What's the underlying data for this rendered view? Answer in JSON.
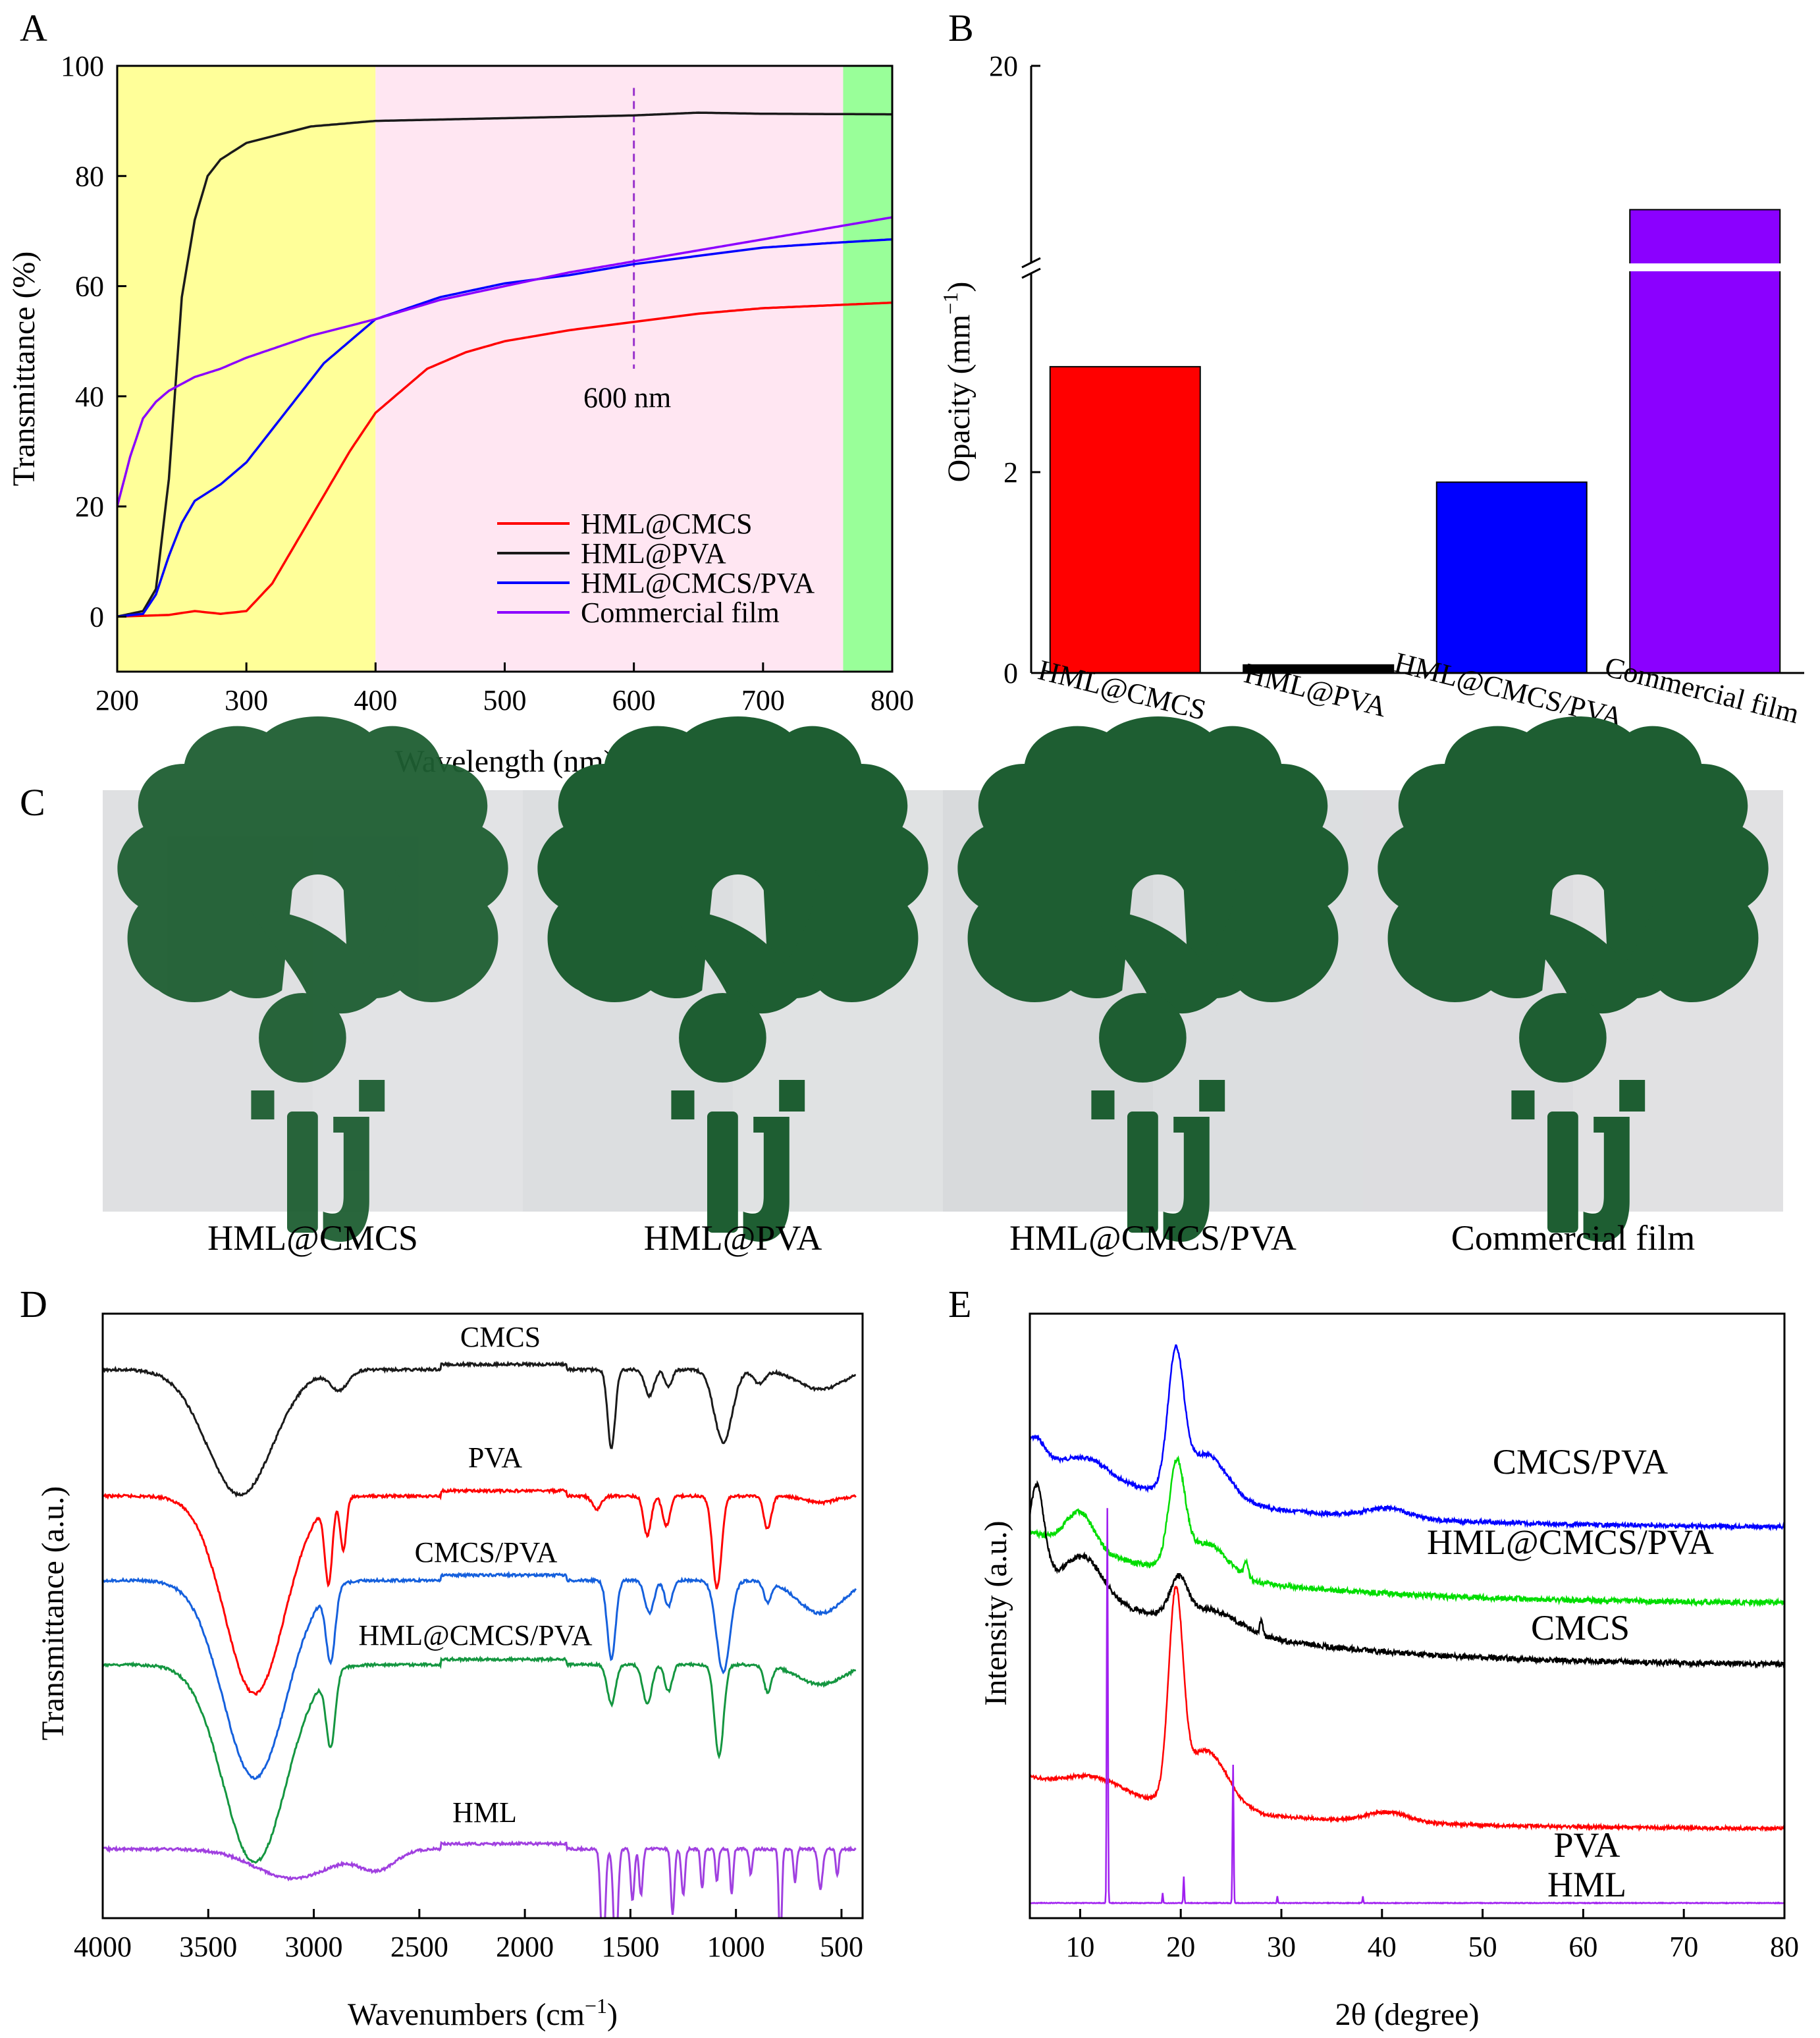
{
  "panels": {
    "A": "A",
    "B": "B",
    "C": "C",
    "D": "D",
    "E": "E"
  },
  "chart_data": [
    {
      "id": "A",
      "type": "line",
      "xlabel": "Wavelength (nm)",
      "ylabel": "Transmittance (%)",
      "xlim": [
        200,
        800
      ],
      "ylim": [
        -10,
        100
      ],
      "xticks": [
        200,
        300,
        400,
        500,
        600,
        700,
        800
      ],
      "yticks": [
        0,
        20,
        40,
        60,
        80,
        100
      ],
      "regions": [
        {
          "from": 200,
          "to": 400,
          "color": "#ffff99"
        },
        {
          "from": 400,
          "to": 762,
          "color": "#ffe6f2"
        },
        {
          "from": 762,
          "to": 800,
          "color": "#99ff99"
        }
      ],
      "annotation": {
        "x": 600,
        "text": "600 nm",
        "color": "#9933cc"
      },
      "legend_position": "bottom-right",
      "series": [
        {
          "name": "HML@CMCS",
          "color": "#ff0000",
          "x": [
            200,
            240,
            260,
            280,
            300,
            320,
            340,
            360,
            380,
            400,
            420,
            440,
            470,
            500,
            550,
            600,
            650,
            700,
            750,
            800
          ],
          "y": [
            0,
            0.3,
            1,
            0.5,
            1,
            6,
            14,
            22,
            30,
            37,
            41,
            45,
            48,
            50,
            52,
            53.5,
            55,
            56,
            56.5,
            57
          ]
        },
        {
          "name": "HML@PVA",
          "color": "#1a1a1a",
          "x": [
            200,
            220,
            230,
            240,
            250,
            260,
            270,
            280,
            300,
            350,
            400,
            500,
            600,
            650,
            700,
            800
          ],
          "y": [
            0,
            1,
            5,
            25,
            58,
            72,
            80,
            83,
            86,
            89,
            90,
            90.5,
            91,
            91.5,
            91.3,
            91.2
          ]
        },
        {
          "name": "HML@CMCS/PVA",
          "color": "#0000ff",
          "x": [
            200,
            220,
            230,
            240,
            250,
            260,
            280,
            300,
            320,
            340,
            360,
            380,
            400,
            450,
            500,
            550,
            600,
            650,
            700,
            750,
            800
          ],
          "y": [
            0,
            0.5,
            4,
            11,
            17,
            21,
            24,
            28,
            34,
            40,
            46,
            50,
            54,
            58,
            60.5,
            62,
            64,
            65.5,
            67,
            67.8,
            68.5
          ]
        },
        {
          "name": "Commercial film",
          "color": "#8b00ff",
          "x": [
            200,
            210,
            220,
            230,
            240,
            260,
            280,
            300,
            350,
            400,
            450,
            500,
            550,
            600,
            650,
            700,
            750,
            800
          ],
          "y": [
            20,
            29,
            36,
            39,
            41,
            43.5,
            45,
            47,
            51,
            54,
            57.5,
            60,
            62.5,
            64.5,
            66.5,
            68.5,
            70.5,
            72.5
          ]
        }
      ]
    },
    {
      "id": "B",
      "type": "bar",
      "ylabel": "Opacity (mm",
      "ylabel_sup": "−1",
      "ylabel_close": ")",
      "categories": [
        "HML@CMCS",
        "HML@PVA",
        "HML@CMCS/PVA",
        "Commercial film"
      ],
      "values": [
        3.05,
        0.08,
        1.9,
        15.8
      ],
      "colors": [
        "#ff0000",
        "#000000",
        "#0000ff",
        "#8b00ff"
      ],
      "y_break": {
        "lower_max": 4,
        "upper_min": 14
      },
      "yticks": [
        "0",
        "2",
        "20"
      ],
      "ytick_values": [
        0,
        2,
        20
      ]
    },
    {
      "id": "D",
      "type": "line",
      "xlabel": "Wavenumbers (cm",
      "xlabel_sup": "−1",
      "xlabel_close": ")",
      "ylabel": "Transmittance (a.u.)",
      "xlim": [
        4000,
        400
      ],
      "xticks": [
        4000,
        3500,
        3000,
        2500,
        2000,
        1500,
        1000,
        500
      ],
      "series": [
        {
          "name": "CMCS",
          "label": "CMCS",
          "color": "#1a1a1a",
          "offset": 830
        },
        {
          "name": "PVA",
          "label": "PVA",
          "color": "#ff0000",
          "offset": 620
        },
        {
          "name": "CMCS/PVA",
          "label": "CMCS/PVA",
          "color": "#1560dd",
          "offset": 450
        },
        {
          "name": "HML@CMCS/PVA",
          "label": "HML@CMCS/PVA",
          "color": "#149640",
          "offset": 320
        },
        {
          "name": "HML",
          "label": "HML",
          "color": "#a040e0",
          "offset": 60
        }
      ]
    },
    {
      "id": "E",
      "type": "line",
      "xlabel": "2θ (degree)",
      "ylabel": "Intensity (a.u.)",
      "xlim": [
        5,
        80
      ],
      "xticks": [
        10,
        20,
        30,
        40,
        50,
        60,
        70,
        80
      ],
      "series": [
        {
          "name": "CMCS/PVA",
          "label": "CMCS/PVA",
          "color": "#0000ff",
          "offset": 590
        },
        {
          "name": "HML@CMCS/PVA",
          "label": "HML@CMCS/PVA",
          "color": "#00dd00",
          "offset": 470
        },
        {
          "name": "CMCS",
          "label": "CMCS",
          "color": "#000000",
          "offset": 360
        },
        {
          "name": "PVA",
          "label": "PVA",
          "color": "#ff0000",
          "offset": 80
        },
        {
          "name": "HML",
          "label": "HML",
          "color": "#a020f0",
          "offset": 0
        }
      ]
    }
  ],
  "photos": {
    "captions": [
      "HML@CMCS",
      "HML@PVA",
      "HML@CMCS/PVA",
      "Commercial film"
    ],
    "logo_color": "#1e5e32",
    "background": "#dcdde0"
  }
}
